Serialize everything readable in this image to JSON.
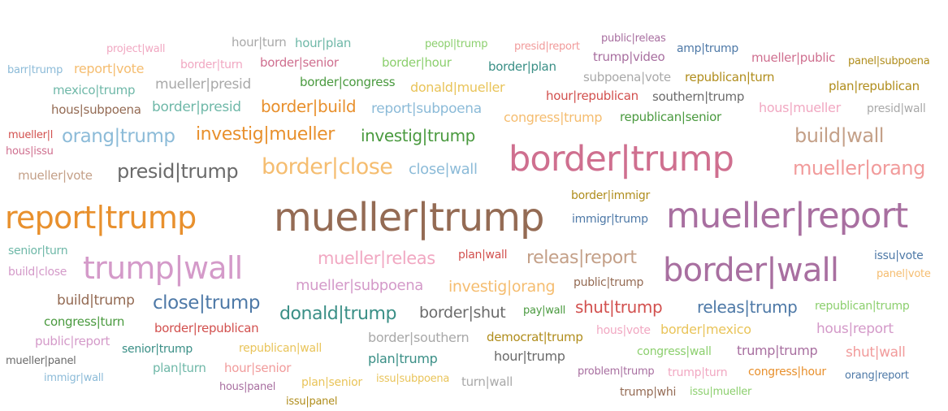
{
  "palette": {
    "blue": "#4e79a7",
    "lightblue": "#8cbbd8",
    "orange": "#e8902d",
    "lightorange": "#f5bd70",
    "green": "#4a9a3f",
    "lightgreen": "#8ccf6e",
    "red": "#d2504e",
    "pink": "#f19b9b",
    "teal": "#3a8f86",
    "lightteal": "#6fb8a8",
    "olive": "#b08d1c",
    "yellow": "#e9c45a",
    "purple": "#a86fa0",
    "lavender": "#d49ac9",
    "rose": "#cf6f8f",
    "lightrose": "#f1a8c2",
    "brown": "#946b54",
    "tan": "#c4a088",
    "gray": "#6b6b6b",
    "lightgray": "#a9a9a9"
  },
  "words": [
    {
      "text": "mueller|trump",
      "color": "brown"
    },
    {
      "text": "mueller|report",
      "color": "purple"
    },
    {
      "text": "border|trump",
      "color": "rose"
    },
    {
      "text": "report|trump",
      "color": "orange"
    },
    {
      "text": "border|wall",
      "color": "purple"
    },
    {
      "text": "trump|wall",
      "color": "lavender"
    },
    {
      "text": "presid|trump",
      "color": "gray"
    },
    {
      "text": "border|close",
      "color": "lightorange"
    },
    {
      "text": "mueller|orang",
      "color": "pink"
    },
    {
      "text": "build|wall",
      "color": "tan"
    },
    {
      "text": "releas|report",
      "color": "tan"
    },
    {
      "text": "investig|mueller",
      "color": "orange"
    },
    {
      "text": "orang|trump",
      "color": "lightblue"
    },
    {
      "text": "investig|trump",
      "color": "green"
    },
    {
      "text": "close|trump",
      "color": "blue"
    },
    {
      "text": "donald|trump",
      "color": "teal"
    },
    {
      "text": "releas|trump",
      "color": "blue"
    },
    {
      "text": "border|build",
      "color": "orange"
    },
    {
      "text": "border|shut",
      "color": "gray"
    },
    {
      "text": "shut|trump",
      "color": "red"
    },
    {
      "text": "mueller|releas",
      "color": "lightrose"
    },
    {
      "text": "investig|orang",
      "color": "lightorange"
    },
    {
      "text": "close|wall",
      "color": "lightblue"
    },
    {
      "text": "report|vote",
      "color": "lightorange"
    },
    {
      "text": "border|presid",
      "color": "lightteal"
    },
    {
      "text": "report|subpoena",
      "color": "lightblue"
    },
    {
      "text": "mueller|subpoena",
      "color": "lavender"
    },
    {
      "text": "build|trump",
      "color": "brown"
    },
    {
      "text": "hous|report",
      "color": "lavender"
    },
    {
      "text": "shut|wall",
      "color": "pink"
    },
    {
      "text": "hous|mueller",
      "color": "lightrose"
    },
    {
      "text": "mueller|presid",
      "color": "lightgray"
    },
    {
      "text": "donald|mueller",
      "color": "yellow"
    },
    {
      "text": "border|mexico",
      "color": "yellow"
    },
    {
      "text": "hour|trump",
      "color": "gray"
    },
    {
      "text": "trump|trump",
      "color": "purple"
    },
    {
      "text": "border|southern",
      "color": "lightgray"
    },
    {
      "text": "republican|trump",
      "color": "lightgreen"
    },
    {
      "text": "congress|trump",
      "color": "lightorange"
    },
    {
      "text": "border|republican",
      "color": "red"
    },
    {
      "text": "plan|trump",
      "color": "teal"
    },
    {
      "text": "hour|turn",
      "color": "lightgray"
    },
    {
      "text": "hour|plan",
      "color": "lightteal"
    },
    {
      "text": "mueller|vote",
      "color": "tan"
    },
    {
      "text": "border|congress",
      "color": "green"
    },
    {
      "text": "hour|republican",
      "color": "red"
    },
    {
      "text": "southern|trump",
      "color": "gray"
    },
    {
      "text": "presid|wall",
      "color": "lightgray"
    },
    {
      "text": "mexico|trump",
      "color": "lightteal"
    },
    {
      "text": "hous|subpoena",
      "color": "brown"
    },
    {
      "text": "border|senior",
      "color": "rose"
    },
    {
      "text": "border|hour",
      "color": "lightgreen"
    },
    {
      "text": "border|plan",
      "color": "teal"
    },
    {
      "text": "plan|republican",
      "color": "olive"
    },
    {
      "text": "trump|video",
      "color": "purple"
    },
    {
      "text": "mueller|public",
      "color": "rose"
    },
    {
      "text": "subpoena|vote",
      "color": "lightgray"
    },
    {
      "text": "republican|turn",
      "color": "olive"
    },
    {
      "text": "republican|senior",
      "color": "green"
    },
    {
      "text": "congress|turn",
      "color": "green"
    },
    {
      "text": "public|report",
      "color": "lavender"
    },
    {
      "text": "senior|trump",
      "color": "teal"
    },
    {
      "text": "republican|wall",
      "color": "yellow"
    },
    {
      "text": "hour|senior",
      "color": "pink"
    },
    {
      "text": "plan|turn",
      "color": "lightteal"
    },
    {
      "text": "plan|senior",
      "color": "yellow"
    },
    {
      "text": "turn|wall",
      "color": "lightgray"
    },
    {
      "text": "democrat|trump",
      "color": "olive"
    },
    {
      "text": "hous|vote",
      "color": "lightrose"
    },
    {
      "text": "congress|wall",
      "color": "lightgreen"
    },
    {
      "text": "congress|hour",
      "color": "orange"
    },
    {
      "text": "trump|turn",
      "color": "lightrose"
    },
    {
      "text": "public|trump",
      "color": "brown"
    },
    {
      "text": "plan|wall",
      "color": "red"
    },
    {
      "text": "pay|wall",
      "color": "green"
    },
    {
      "text": "border|immigr",
      "color": "olive"
    },
    {
      "text": "immigr|trump",
      "color": "blue"
    },
    {
      "text": "issu|vote",
      "color": "blue"
    },
    {
      "text": "panel|vote",
      "color": "lightorange"
    },
    {
      "text": "senior|turn",
      "color": "lightteal"
    },
    {
      "text": "build|close",
      "color": "lavender"
    },
    {
      "text": "mueller|panel",
      "color": "gray"
    },
    {
      "text": "immigr|wall",
      "color": "lightblue"
    },
    {
      "text": "hous|panel",
      "color": "purple"
    },
    {
      "text": "issu|panel",
      "color": "olive"
    },
    {
      "text": "issu|subpoena",
      "color": "yellow"
    },
    {
      "text": "problem|trump",
      "color": "purple"
    },
    {
      "text": "trump|whi",
      "color": "brown"
    },
    {
      "text": "issu|mueller",
      "color": "lightgreen"
    },
    {
      "text": "orang|report",
      "color": "blue"
    },
    {
      "text": "project|wall",
      "color": "lightrose"
    },
    {
      "text": "barr|trump",
      "color": "lightblue"
    },
    {
      "text": "border|turn",
      "color": "lightrose"
    },
    {
      "text": "peopl|trump",
      "color": "lightgreen"
    },
    {
      "text": "presid|report",
      "color": "pink"
    },
    {
      "text": "public|releas",
      "color": "purple"
    },
    {
      "text": "amp|trump",
      "color": "blue"
    },
    {
      "text": "panel|subpoena",
      "color": "olive"
    },
    {
      "text": "mueller|l",
      "color": "red"
    },
    {
      "text": "hous|issu",
      "color": "rose"
    }
  ]
}
